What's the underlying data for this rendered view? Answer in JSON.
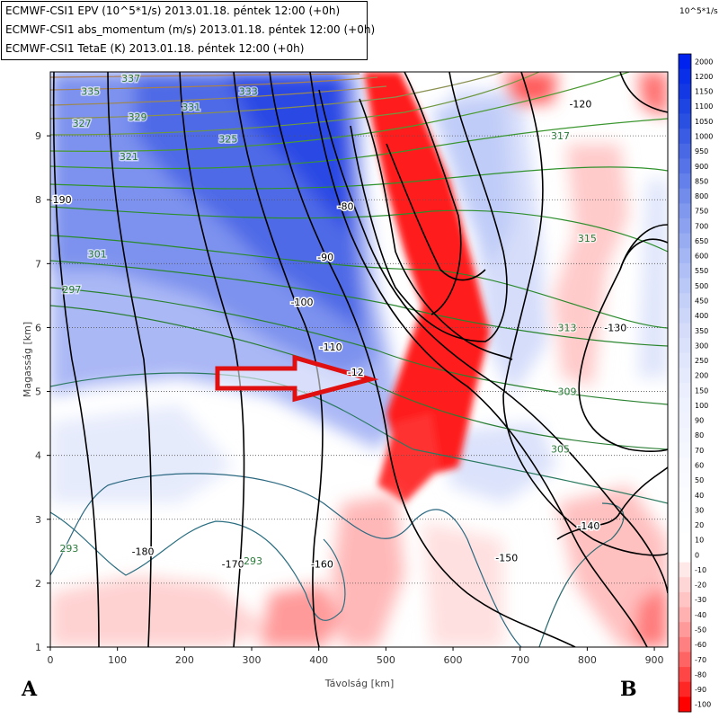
{
  "legend": {
    "line1": "ECMWF-CSI1 EPV (10^5*1/s) 2013.01.18. péntek 12:00 (+0h)",
    "line2": "ECMWF-CSI1 abs_momentum (m/s) 2013.01.18. péntek 12:00 (+0h)",
    "line3": "ECMWF-CSI1 TetaE (K) 2013.01.18. péntek 12:00 (+0h)"
  },
  "colorbar": {
    "unit": "10^5*1/s",
    "labels": [
      "2000",
      "1200",
      "1150",
      "1100",
      "1050",
      "1000",
      "950",
      "900",
      "850",
      "800",
      "750",
      "700",
      "650",
      "600",
      "550",
      "500",
      "450",
      "400",
      "350",
      "300",
      "250",
      "200",
      "150",
      "100",
      "90",
      "80",
      "70",
      "60",
      "50",
      "40",
      "30",
      "20",
      "10",
      "0",
      "-10",
      "-20",
      "-30",
      "-40",
      "-50",
      "-60",
      "-70",
      "-80",
      "-90",
      "-100"
    ],
    "colors": [
      "#0022ee",
      "#0a2fe8",
      "#1438e4",
      "#1e44e2",
      "#2a50e2",
      "#3a5ce4",
      "#4868e6",
      "#5674e8",
      "#6480ea",
      "#728cec",
      "#8098ee",
      "#8ca2f0",
      "#98acf2",
      "#a4b6f4",
      "#b0c0f6",
      "#bac8f7",
      "#c4d0f8",
      "#ccd6f9",
      "#d4dcfa",
      "#dae2fb",
      "#e0e6fc",
      "#e6eafd",
      "#eaeefd",
      "#eef2fe",
      "#f0f3fe",
      "#f3f5fe",
      "#f5f7ff",
      "#f7f9ff",
      "#f9faff",
      "#fbfcff",
      "#fcfdff",
      "#fdfeff",
      "#ffffff",
      "#ffffff",
      "#ffe8e8",
      "#ffd6d6",
      "#ffc4c4",
      "#ffb0b0",
      "#ff9a9a",
      "#ff8080",
      "#ff6464",
      "#ff4646",
      "#ff2626",
      "#ff0000"
    ]
  },
  "corners": {
    "left": "A",
    "right": "B"
  },
  "chart_data": {
    "type": "cross-section",
    "xlabel": "Távolság [km]",
    "ylabel": "Magasság [km]",
    "xlim": [
      0,
      920
    ],
    "ylim": [
      1,
      10
    ],
    "xticks": [
      0,
      100,
      200,
      300,
      400,
      500,
      600,
      700,
      800,
      900
    ],
    "yticks": [
      1,
      2,
      3,
      4,
      5,
      6,
      7,
      8,
      9
    ],
    "grid": "horizontal dotted",
    "annotation": "red arrow pointing right at ~x 480 km, y 5.1 km",
    "abs_momentum_contour_labels": [
      {
        "text": "-190",
        "x": 15,
        "y": 8.0
      },
      {
        "text": "-180",
        "x": 138,
        "y": 2.5
      },
      {
        "text": "-170",
        "x": 272,
        "y": 2.3
      },
      {
        "text": "-160",
        "x": 405,
        "y": 2.3
      },
      {
        "text": "-150",
        "x": 680,
        "y": 2.4
      },
      {
        "text": "-140",
        "x": 802,
        "y": 2.9
      },
      {
        "text": "-130",
        "x": 842,
        "y": 6.0
      },
      {
        "text": "-120",
        "x": 790,
        "y": 9.5
      },
      {
        "text": "-110",
        "x": 418,
        "y": 5.7
      },
      {
        "text": "-100",
        "x": 375,
        "y": 6.4
      },
      {
        "text": "-90",
        "x": 410,
        "y": 7.1
      },
      {
        "text": "-80",
        "x": 440,
        "y": 7.9
      },
      {
        "text": "-12",
        "x": 455,
        "y": 5.3
      }
    ],
    "theta_e_contour_labels": [
      {
        "text": "337",
        "x": 120,
        "y": 9.9
      },
      {
        "text": "335",
        "x": 60,
        "y": 9.7
      },
      {
        "text": "333",
        "x": 295,
        "y": 9.7
      },
      {
        "text": "331",
        "x": 210,
        "y": 9.45
      },
      {
        "text": "329",
        "x": 130,
        "y": 9.3
      },
      {
        "text": "327",
        "x": 47,
        "y": 9.2
      },
      {
        "text": "325",
        "x": 265,
        "y": 8.95
      },
      {
        "text": "321",
        "x": 117,
        "y": 8.68
      },
      {
        "text": "317",
        "x": 760,
        "y": 9.0
      },
      {
        "text": "315",
        "x": 800,
        "y": 7.4
      },
      {
        "text": "313",
        "x": 770,
        "y": 6.0
      },
      {
        "text": "309",
        "x": 770,
        "y": 5.0
      },
      {
        "text": "305",
        "x": 760,
        "y": 4.1
      },
      {
        "text": "301",
        "x": 70,
        "y": 7.15
      },
      {
        "text": "297",
        "x": 32,
        "y": 6.6
      },
      {
        "text": "293",
        "x": 302,
        "y": 2.35
      },
      {
        "text": "293",
        "x": 28,
        "y": 2.55
      }
    ]
  }
}
